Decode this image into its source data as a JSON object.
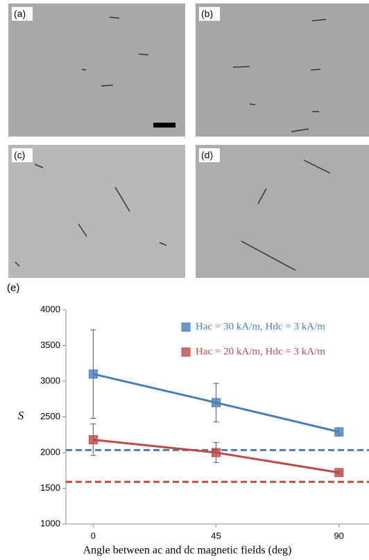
{
  "panels": [
    "(a)",
    "(b)",
    "(c)",
    "(d)"
  ],
  "chart_data": {
    "type": "line",
    "label": "(e)",
    "x_label": "Angle between ac and dc magnetic fields (deg)",
    "y_label": "S",
    "x": [
      0,
      45,
      90
    ],
    "series": [
      {
        "name": "Hac = 30 kA/m, Hdc = 3 kA/m",
        "color": "#4a7ebb",
        "values": [
          3100,
          2700,
          2290
        ],
        "errors": [
          620,
          270,
          60
        ]
      },
      {
        "name": "Hac = 20 kA/m, Hdc = 3 kA/m",
        "color": "#be4b48",
        "values": [
          2180,
          2000,
          1720
        ],
        "errors": [
          220,
          140,
          20
        ]
      }
    ],
    "reference_lines": [
      {
        "value": 2035,
        "color": "#4a7ebb"
      },
      {
        "value": 1590,
        "color": "#be4b48"
      }
    ],
    "xlim": [
      -10,
      101
    ],
    "ylim": [
      1000,
      4000
    ],
    "xticks": [
      0,
      45,
      90
    ],
    "yticks": [
      1000,
      1500,
      2000,
      2500,
      3000,
      3500,
      4000
    ],
    "grid": false,
    "legend": "upper right"
  }
}
